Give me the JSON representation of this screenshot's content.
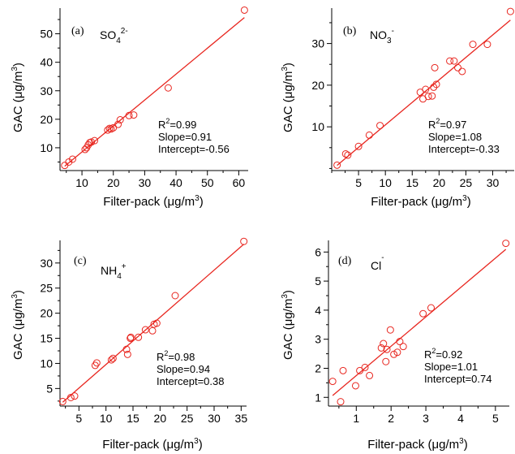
{
  "figure": {
    "marker_color": "#e8261f",
    "line_color": "#e8261f",
    "panels": [
      {
        "letter": "(a)",
        "species_base": "SO",
        "species_sub": "4",
        "species_sup": "2-",
        "ylabel_main": "GAC (μg/m",
        "ylabel_sup": "3",
        "ylabel_close": ")",
        "xlabel_main": "Filter-pack (μg/m",
        "xlabel_sup": "3",
        "xlabel_close": ")",
        "stats": {
          "r2_prefix": "R",
          "r2_sup": "2",
          "r2_value": "=0.99",
          "slope": "Slope=0.91",
          "intercept": "Intercept=-0.56"
        }
      },
      {
        "letter": "(b)",
        "species_base": "NO",
        "species_sub": "3",
        "species_sup": "-",
        "ylabel_main": "GAC (μg/m",
        "ylabel_sup": "3",
        "ylabel_close": ")",
        "xlabel_main": "Filter-pack (μg/m",
        "xlabel_sup": "3",
        "xlabel_close": ")",
        "stats": {
          "r2_prefix": "R",
          "r2_sup": "2",
          "r2_value": "=0.97",
          "slope": "Slope=1.08",
          "intercept": "Intercept=-0.33"
        }
      },
      {
        "letter": "(c)",
        "species_base": "NH",
        "species_sub": "4",
        "species_sup": "+",
        "ylabel_main": "GAC (μg/m",
        "ylabel_sup": "3",
        "ylabel_close": ")",
        "xlabel_main": "Filter-pack (μg/m",
        "xlabel_sup": "3",
        "xlabel_close": ")",
        "stats": {
          "r2_prefix": "R",
          "r2_sup": "2",
          "r2_value": "=0.98",
          "slope": "Slope=0.94",
          "intercept": "Intercept=0.38"
        }
      },
      {
        "letter": "(d)",
        "species_base": "Cl",
        "species_sub": "",
        "species_sup": "-",
        "ylabel_main": "GAC (μg/m",
        "ylabel_sup": "3",
        "ylabel_close": ")",
        "xlabel_main": "Filter-pack (μg/m",
        "xlabel_sup": "3",
        "xlabel_close": ")",
        "stats": {
          "r2_prefix": "R",
          "r2_sup": "2",
          "r2_value": "=0.92",
          "slope": "Slope=1.01",
          "intercept": "Intercept=0.74"
        }
      }
    ]
  },
  "chart_data": [
    {
      "type": "scatter",
      "xlim": [
        3,
        63
      ],
      "ylim": [
        2,
        59
      ],
      "xticks": [
        10,
        20,
        30,
        40,
        50,
        60
      ],
      "yticks": [
        10,
        20,
        30,
        40,
        50
      ],
      "fit": {
        "slope": 0.91,
        "intercept": -0.56
      },
      "points": [
        [
          4.5,
          3.8
        ],
        [
          5.8,
          5
        ],
        [
          7,
          6
        ],
        [
          11,
          9.4
        ],
        [
          11.5,
          10
        ],
        [
          12,
          11
        ],
        [
          12.5,
          11.8
        ],
        [
          13,
          12
        ],
        [
          14,
          12.5
        ],
        [
          18.2,
          16.2
        ],
        [
          18.8,
          16.8
        ],
        [
          19.3,
          16.6
        ],
        [
          20,
          17
        ],
        [
          21.5,
          18.2
        ],
        [
          22.2,
          19.8
        ],
        [
          25,
          21.3
        ],
        [
          26.5,
          21.5
        ],
        [
          37.5,
          31
        ],
        [
          61.8,
          58.3
        ]
      ]
    },
    {
      "type": "scatter",
      "xlim": [
        0,
        34
      ],
      "ylim": [
        -0.5,
        38.5
      ],
      "xticks": [
        5,
        10,
        15,
        20,
        25,
        30
      ],
      "yticks": [
        10,
        20,
        30
      ],
      "fit": {
        "slope": 1.08,
        "intercept": -0.33
      },
      "points": [
        [
          1,
          0.8
        ],
        [
          2.6,
          3.5
        ],
        [
          3,
          3.2
        ],
        [
          5,
          5.3
        ],
        [
          7,
          8
        ],
        [
          9,
          10.3
        ],
        [
          16.5,
          18.3
        ],
        [
          17,
          16.7
        ],
        [
          17.5,
          19
        ],
        [
          18,
          17.3
        ],
        [
          18.7,
          17.4
        ],
        [
          19,
          19.5
        ],
        [
          19.5,
          20.2
        ],
        [
          19.2,
          24.2
        ],
        [
          22,
          25.8
        ],
        [
          22.8,
          25.8
        ],
        [
          23.5,
          24.2
        ],
        [
          24.3,
          23.3
        ],
        [
          26.3,
          29.8
        ],
        [
          29,
          29.8
        ],
        [
          33.3,
          37.7
        ]
      ]
    },
    {
      "type": "scatter",
      "xlim": [
        1.5,
        36
      ],
      "ylim": [
        1.5,
        34.5
      ],
      "xticks": [
        5,
        10,
        15,
        20,
        25,
        30,
        35
      ],
      "yticks": [
        5,
        10,
        15,
        20,
        25,
        30
      ],
      "fit": {
        "slope": 0.94,
        "intercept": 0.38
      },
      "points": [
        [
          2,
          2.4
        ],
        [
          3.5,
          3.2
        ],
        [
          4.2,
          3.5
        ],
        [
          8,
          9.6
        ],
        [
          8.3,
          10.1
        ],
        [
          11,
          10.7
        ],
        [
          11.3,
          11
        ],
        [
          13.8,
          12.8
        ],
        [
          14,
          11.8
        ],
        [
          14.5,
          15
        ],
        [
          14.6,
          15.2
        ],
        [
          16,
          15.2
        ],
        [
          17.3,
          16.7
        ],
        [
          18.6,
          16.5
        ],
        [
          18.9,
          17.8
        ],
        [
          19.4,
          18
        ],
        [
          22.8,
          23.5
        ],
        [
          35.5,
          34.3
        ]
      ]
    },
    {
      "type": "scatter",
      "xlim": [
        0.2,
        5.4
      ],
      "ylim": [
        0.7,
        6.4
      ],
      "xticks": [
        1,
        2,
        3,
        4,
        5
      ],
      "yticks": [
        1,
        2,
        3,
        4,
        5,
        6
      ],
      "fit": {
        "slope": 1.01,
        "intercept": 0.74
      },
      "points": [
        [
          0.32,
          1.55
        ],
        [
          0.55,
          0.85
        ],
        [
          0.62,
          1.92
        ],
        [
          0.98,
          1.4
        ],
        [
          1.1,
          1.92
        ],
        [
          1.25,
          2.03
        ],
        [
          1.38,
          1.75
        ],
        [
          1.72,
          2.7
        ],
        [
          1.78,
          2.85
        ],
        [
          1.85,
          2.23
        ],
        [
          1.88,
          2.65
        ],
        [
          1.98,
          3.32
        ],
        [
          2.08,
          2.48
        ],
        [
          2.18,
          2.55
        ],
        [
          2.25,
          2.92
        ],
        [
          2.35,
          2.75
        ],
        [
          2.92,
          3.88
        ],
        [
          3.15,
          4.08
        ],
        [
          5.3,
          6.3
        ]
      ]
    }
  ]
}
